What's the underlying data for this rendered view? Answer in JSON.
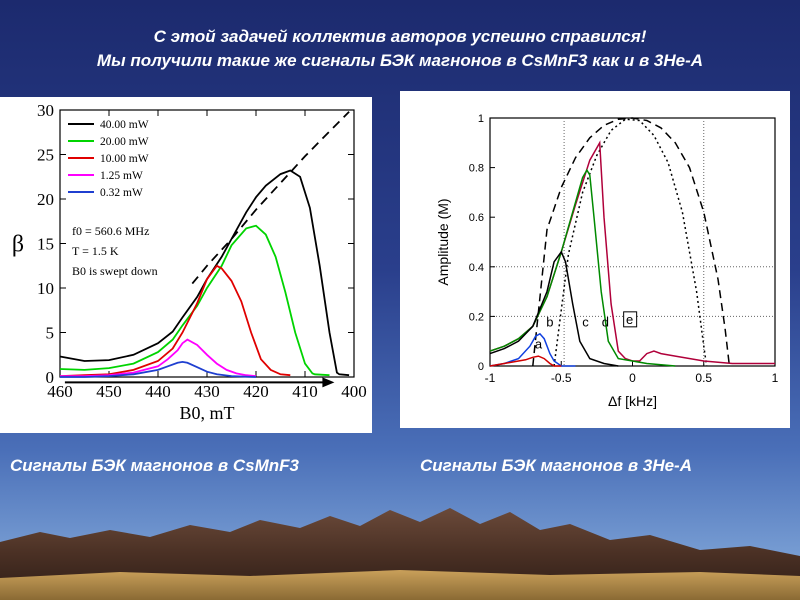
{
  "slide": {
    "title_line1": "С этой задачей коллектив авторов успешно справился!",
    "title_line2": "Мы получили такие же сигналы БЭК магнонов в CsMnF3 как и в 3He-A",
    "caption_left": "Сигналы БЭК магнонов в CsMnF3",
    "caption_right": "Сигналы БЭК магнонов в 3He-A"
  },
  "chart_data": [
    {
      "type": "line",
      "xlabel": "B0, mT",
      "ylabel": "β",
      "xlim": [
        460,
        400
      ],
      "ylim": [
        0,
        30
      ],
      "x_ticks": [
        460,
        450,
        440,
        430,
        420,
        410,
        400
      ],
      "y_ticks": [
        0,
        5,
        10,
        15,
        20,
        25,
        30
      ],
      "annotations": [
        "f0 = 560.6 MHz",
        "T = 1.5 K",
        "B0 is swept down"
      ],
      "legend_position": "top-left",
      "series": [
        {
          "name": "40.00 mW",
          "color": "#000000",
          "x": [
            460,
            455,
            450,
            445,
            440,
            437,
            435,
            432,
            430,
            427,
            425,
            422,
            420,
            418,
            415,
            413,
            411,
            409,
            407,
            405,
            403.5,
            403,
            401
          ],
          "y": [
            2.3,
            1.8,
            1.9,
            2.5,
            3.8,
            5.1,
            6.7,
            9.0,
            11.0,
            13.5,
            15.5,
            18.5,
            20.2,
            21.5,
            22.8,
            23.2,
            22.5,
            19.0,
            12.5,
            5.0,
            0.5,
            0.3,
            0.2
          ]
        },
        {
          "name": "20.00 mW",
          "color": "#00d400",
          "x": [
            460,
            455,
            450,
            445,
            440,
            437,
            435,
            432,
            430,
            427,
            425,
            422,
            420,
            418,
            416,
            414,
            412,
            410,
            408.5,
            408,
            405
          ],
          "y": [
            0.9,
            0.8,
            1.0,
            1.5,
            2.8,
            4.2,
            5.8,
            8.0,
            10.0,
            12.5,
            14.8,
            16.7,
            17.0,
            16.0,
            13.5,
            9.5,
            5.0,
            1.5,
            0.4,
            0.3,
            0.2
          ]
        },
        {
          "name": "10.00 mW",
          "color": "#e00000",
          "x": [
            460,
            455,
            450,
            445,
            440,
            437,
            435,
            432,
            430,
            428,
            427,
            425,
            423,
            421,
            419,
            417,
            415,
            413
          ],
          "y": [
            0.1,
            0.2,
            0.3,
            0.8,
            1.8,
            3.2,
            5.0,
            8.3,
            11.0,
            12.5,
            12.2,
            10.8,
            8.5,
            5.0,
            2.0,
            0.8,
            0.3,
            0.2
          ]
        },
        {
          "name": "1.25 mW",
          "color": "#ff00ff",
          "x": [
            460,
            455,
            450,
            445,
            440,
            438,
            436,
            435,
            434,
            432,
            430,
            428,
            426,
            424,
            422,
            420
          ],
          "y": [
            0.1,
            0.1,
            0.2,
            0.5,
            1.2,
            2.0,
            3.0,
            3.8,
            4.2,
            3.6,
            2.5,
            1.5,
            0.8,
            0.4,
            0.2,
            0.1
          ]
        },
        {
          "name": "0.32 mW",
          "color": "#1f3fd0",
          "x": [
            460,
            455,
            450,
            445,
            440,
            438,
            436,
            435,
            434,
            432,
            430,
            428,
            425,
            420
          ],
          "y": [
            0.0,
            0.0,
            0.1,
            0.3,
            0.8,
            1.2,
            1.6,
            1.7,
            1.6,
            1.1,
            0.6,
            0.3,
            0.1,
            0.0
          ]
        },
        {
          "name": "",
          "color": "#000000",
          "dash": "dashed",
          "x": [
            433,
            430,
            425,
            420,
            415,
            410,
            405,
            401
          ],
          "y": [
            10.5,
            12.5,
            15.5,
            18.8,
            21.8,
            24.8,
            27.6,
            29.8
          ]
        }
      ],
      "arrow": {
        "from": 459,
        "to": 404,
        "y": -0.6
      }
    },
    {
      "type": "line",
      "xlabel": "Δf [kHz]",
      "ylabel": "Amplitude (M)",
      "xlim": [
        -1,
        1
      ],
      "ylim": [
        0,
        1
      ],
      "x_ticks": [
        "-1",
        "-0.5",
        "0",
        "0.5",
        "1"
      ],
      "y_ticks": [
        "0",
        "0.2",
        "0.4",
        "0.6",
        "0.8",
        "1"
      ],
      "curve_labels": [
        "a",
        "b",
        "c",
        "d",
        "e"
      ],
      "gridlines_y": [
        0.2,
        0.4
      ],
      "gridlines_x": [
        -0.48,
        0.5
      ],
      "series": [
        {
          "name": "",
          "color": "#000000",
          "dash": "dashed",
          "x": [
            -0.7,
            -0.6,
            -0.5,
            -0.4,
            -0.3,
            -0.2,
            -0.1,
            0,
            0.1,
            0.2,
            0.3,
            0.4,
            0.5,
            0.6,
            0.65,
            0.68
          ],
          "y": [
            0.0,
            0.55,
            0.72,
            0.84,
            0.92,
            0.97,
            0.995,
            1.0,
            0.99,
            0.96,
            0.9,
            0.8,
            0.62,
            0.35,
            0.15,
            0.0
          ]
        },
        {
          "name": "",
          "color": "#000000",
          "dash": "dotted",
          "x": [
            -0.55,
            -0.45,
            -0.35,
            -0.25,
            -0.15,
            -0.05,
            0.05,
            0.15,
            0.25,
            0.35,
            0.45,
            0.5,
            0.52
          ],
          "y": [
            0.0,
            0.45,
            0.7,
            0.85,
            0.95,
            0.995,
            0.99,
            0.93,
            0.82,
            0.62,
            0.3,
            0.08,
            0.0
          ]
        },
        {
          "name": "",
          "color": "#b0003a",
          "x": [
            -1,
            -0.9,
            -0.8,
            -0.7,
            -0.6,
            -0.5,
            -0.4,
            -0.3,
            -0.25,
            -0.23,
            -0.2,
            -0.15,
            -0.1,
            -0.05,
            0,
            0.05,
            0.1,
            0.15,
            0.2,
            0.3,
            0.5,
            0.7,
            1
          ],
          "y": [
            0.06,
            0.08,
            0.11,
            0.16,
            0.28,
            0.46,
            0.65,
            0.83,
            0.88,
            0.9,
            0.6,
            0.25,
            0.06,
            0.03,
            0.02,
            0.02,
            0.05,
            0.06,
            0.05,
            0.04,
            0.02,
            0.01,
            0.01
          ]
        },
        {
          "name": "",
          "color": "#008a00",
          "x": [
            -1,
            -0.9,
            -0.8,
            -0.7,
            -0.6,
            -0.5,
            -0.45,
            -0.4,
            -0.35,
            -0.32,
            -0.3,
            -0.27,
            -0.22,
            -0.17,
            -0.1,
            0,
            0.1,
            0.3
          ],
          "y": [
            0.06,
            0.08,
            0.11,
            0.16,
            0.28,
            0.46,
            0.56,
            0.66,
            0.76,
            0.79,
            0.77,
            0.6,
            0.3,
            0.1,
            0.03,
            0.02,
            0.01,
            0.0
          ]
        },
        {
          "name": "",
          "color": "#000000",
          "x": [
            -1,
            -0.9,
            -0.8,
            -0.7,
            -0.6,
            -0.55,
            -0.5,
            -0.47,
            -0.42,
            -0.37,
            -0.3,
            -0.2,
            -0.1
          ],
          "y": [
            0.05,
            0.07,
            0.1,
            0.16,
            0.3,
            0.42,
            0.46,
            0.42,
            0.25,
            0.1,
            0.03,
            0.01,
            0.0
          ]
        },
        {
          "name": "",
          "color": "#1040e0",
          "x": [
            -1,
            -0.9,
            -0.8,
            -0.72,
            -0.68,
            -0.65,
            -0.62,
            -0.58,
            -0.55,
            -0.5,
            -0.4
          ],
          "y": [
            0.0,
            0.01,
            0.03,
            0.08,
            0.12,
            0.13,
            0.11,
            0.05,
            0.02,
            0.0,
            0.0
          ]
        },
        {
          "name": "",
          "color": "#d00000",
          "x": [
            -1,
            -0.9,
            -0.8,
            -0.75,
            -0.7,
            -0.66,
            -0.62,
            -0.58,
            -0.55,
            -0.5
          ],
          "y": [
            0.0,
            0.01,
            0.02,
            0.025,
            0.035,
            0.04,
            0.03,
            0.01,
            0.0,
            0.0
          ]
        }
      ]
    }
  ]
}
